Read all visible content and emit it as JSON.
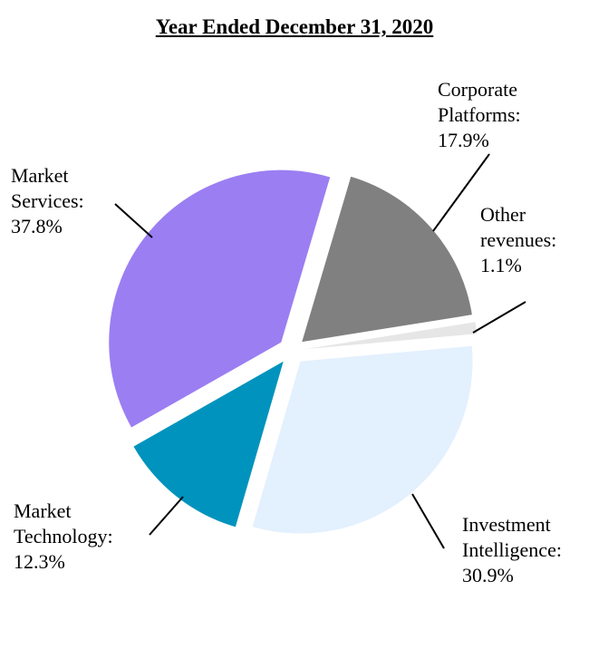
{
  "chart_data": {
    "type": "pie",
    "title": "Year Ended December 31, 2020",
    "exploded": true,
    "slices": [
      {
        "label": "Corporate Platforms:",
        "value": 17.9,
        "value_label": "17.9%",
        "color": "#808080"
      },
      {
        "label": "Other revenues:",
        "value": 1.1,
        "value_label": "1.1%",
        "color": "#e6e6e6"
      },
      {
        "label": "Investment Intelligence:",
        "value": 30.9,
        "value_label": "30.9%",
        "color": "#e3f0fd"
      },
      {
        "label": "Market Technology:",
        "value": 12.3,
        "value_label": "12.3%",
        "color": "#0093bd"
      },
      {
        "label": "Market Services:",
        "value": 37.8,
        "value_label": "37.8%",
        "color": "#9b7ef2"
      }
    ]
  }
}
